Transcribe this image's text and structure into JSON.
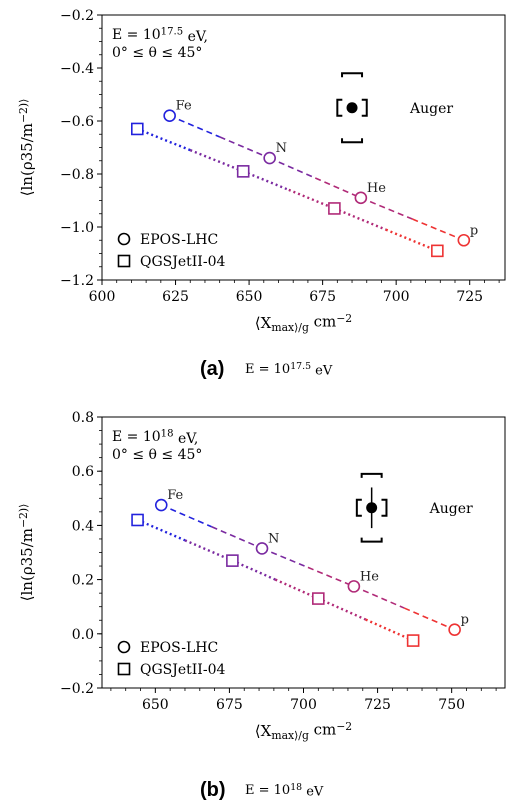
{
  "chart_data": [
    {
      "type": "scatter",
      "panel": "(a)",
      "caption_text": "E = 10^17.5 eV",
      "annotation_energy": "E = 10^17.5 eV,",
      "annotation_angle": "0° ≤ θ ≤ 45°",
      "xlabel": "⟨X_max⟩/g cm^−2",
      "ylabel": "⟨ln(ρ35/m^−2)⟩",
      "xlim": [
        600,
        737
      ],
      "ylim": [
        -1.2,
        -0.2
      ],
      "xticks": [
        600,
        625,
        650,
        675,
        700,
        725
      ],
      "yticks": [
        -1.2,
        -1.0,
        -0.8,
        -0.6,
        -0.4,
        -0.2
      ],
      "ytick_labels": [
        "−1.2",
        "−1.0",
        "−0.8",
        "−0.6",
        "−0.4",
        "−0.2"
      ],
      "series": [
        {
          "name": "EPOS-LHC",
          "marker": "circle",
          "line": "dashed",
          "points": [
            {
              "label": "Fe",
              "x": 623,
              "y": -0.58,
              "color": "#2222dd"
            },
            {
              "label": "N",
              "x": 657,
              "y": -0.74,
              "color": "#7a2aa0"
            },
            {
              "label": "He",
              "x": 688,
              "y": -0.89,
              "color": "#b02a78"
            },
            {
              "label": "p",
              "x": 723,
              "y": -1.05,
              "color": "#ee3333"
            }
          ]
        },
        {
          "name": "QGSJetII-04",
          "marker": "square",
          "line": "dotted",
          "points": [
            {
              "label": "",
              "x": 612,
              "y": -0.63,
              "color": "#2222dd"
            },
            {
              "label": "",
              "x": 648,
              "y": -0.79,
              "color": "#7a2aa0"
            },
            {
              "label": "",
              "x": 679,
              "y": -0.93,
              "color": "#b02a78"
            },
            {
              "label": "",
              "x": 714,
              "y": -1.09,
              "color": "#ee3333"
            }
          ]
        }
      ],
      "auger": {
        "label": "Auger",
        "x": 685,
        "y": -0.55,
        "stat_err_y": 0.0,
        "sys_x": 5,
        "sys_y": 0.13
      },
      "legend_placement": "bottom-left"
    },
    {
      "type": "scatter",
      "panel": "(b)",
      "caption_text": "E = 10^18 eV",
      "annotation_energy": "E = 10^18 eV,",
      "annotation_angle": "0° ≤ θ ≤ 45°",
      "xlabel": "⟨X_max⟩/g cm^−2",
      "ylabel": "⟨ln(ρ35/m^−2)⟩",
      "xlim": [
        632,
        768
      ],
      "ylim": [
        -0.2,
        0.8
      ],
      "xticks": [
        650,
        675,
        700,
        725,
        750
      ],
      "yticks": [
        -0.2,
        0.0,
        0.2,
        0.4,
        0.6,
        0.8
      ],
      "ytick_labels": [
        "−0.2",
        "0.0",
        "0.2",
        "0.4",
        "0.6",
        "0.8"
      ],
      "series": [
        {
          "name": "EPOS-LHC",
          "marker": "circle",
          "line": "dashed",
          "points": [
            {
              "label": "Fe",
              "x": 652,
              "y": 0.475,
              "color": "#2222dd"
            },
            {
              "label": "N",
              "x": 686,
              "y": 0.315,
              "color": "#7a2aa0"
            },
            {
              "label": "He",
              "x": 717,
              "y": 0.175,
              "color": "#b02a78"
            },
            {
              "label": "p",
              "x": 751,
              "y": 0.015,
              "color": "#ee3333"
            }
          ]
        },
        {
          "name": "QGSJetII-04",
          "marker": "square",
          "line": "dotted",
          "points": [
            {
              "label": "",
              "x": 644,
              "y": 0.42,
              "color": "#2222dd"
            },
            {
              "label": "",
              "x": 676,
              "y": 0.27,
              "color": "#7a2aa0"
            },
            {
              "label": "",
              "x": 705,
              "y": 0.13,
              "color": "#b02a78"
            },
            {
              "label": "",
              "x": 737,
              "y": -0.025,
              "color": "#ee3333"
            }
          ]
        }
      ],
      "auger": {
        "label": "Auger",
        "x": 723,
        "y": 0.465,
        "stat_err_y": 0.075,
        "sys_x": 5,
        "sys_y": 0.125
      },
      "legend_placement": "bottom-left"
    }
  ]
}
